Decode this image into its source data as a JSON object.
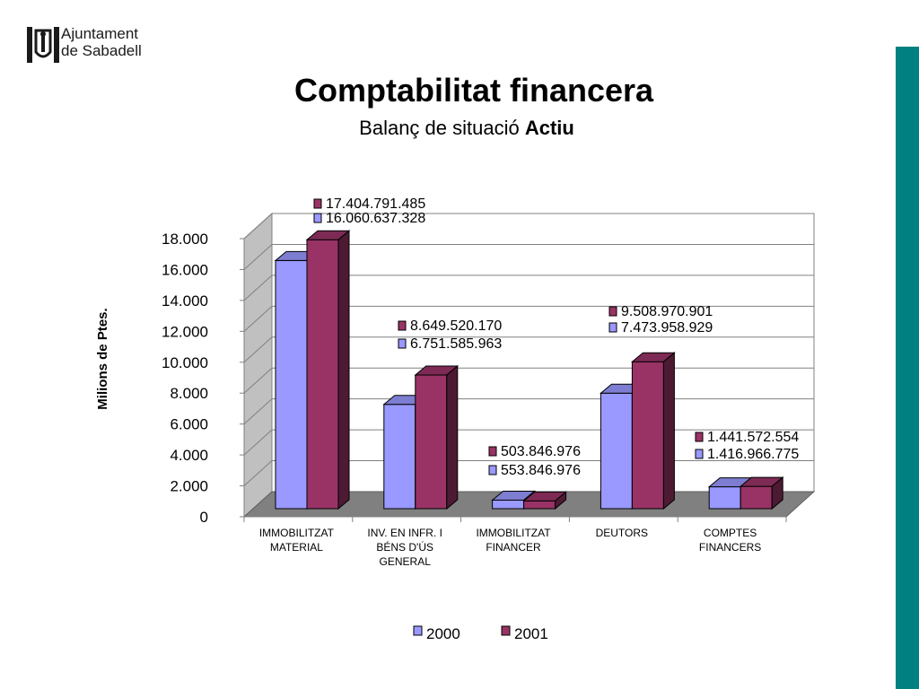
{
  "logo": {
    "line1": "Ajuntament",
    "line2": "de Sabadell"
  },
  "header": {
    "title": "Comptabilitat financera",
    "subtitle_prefix": "Balanç de situació",
    "subtitle_bold": "Actiu"
  },
  "colors": {
    "series2000": "#9999ff",
    "series2001": "#993366",
    "accent_bar": "#008080"
  },
  "chart_data": {
    "type": "bar",
    "ylabel": "Milions de Ptes.",
    "ylim": [
      0,
      18000
    ],
    "yticks": [
      0,
      2000,
      4000,
      6000,
      8000,
      10000,
      12000,
      14000,
      16000,
      18000
    ],
    "ytick_labels": [
      "0",
      "2.000",
      "4.000",
      "6.000",
      "8.000",
      "10.000",
      "12.000",
      "14.000",
      "16.000",
      "18.000"
    ],
    "categories": [
      [
        "IMMOBILITZAT",
        "MATERIAL"
      ],
      [
        "INV. EN INFR. I",
        "BÉNS D'ÚS",
        "GENERAL"
      ],
      [
        "IMMOBILITZAT",
        "FINANCER"
      ],
      [
        "DEUTORS"
      ],
      [
        "COMPTES",
        "FINANCERS"
      ]
    ],
    "series": [
      {
        "name": "2000",
        "values": [
          16060.637328,
          6751.585963,
          553.846976,
          7473.958929,
          1416.966775
        ],
        "labels": [
          "16.060.637.328",
          "6.751.585.963",
          "553.846.976",
          "7.473.958.929",
          "1.416.966.775"
        ]
      },
      {
        "name": "2001",
        "values": [
          17404.791485,
          8649.52017,
          503.846976,
          9508.970901,
          1441.572554
        ],
        "labels": [
          "17.404.791.485",
          "8.649.520.170",
          "503.846.976",
          "9.508.970.901",
          "1.441.572.554"
        ]
      }
    ],
    "grid": true,
    "legend": "bottom",
    "style": "3d-column"
  }
}
